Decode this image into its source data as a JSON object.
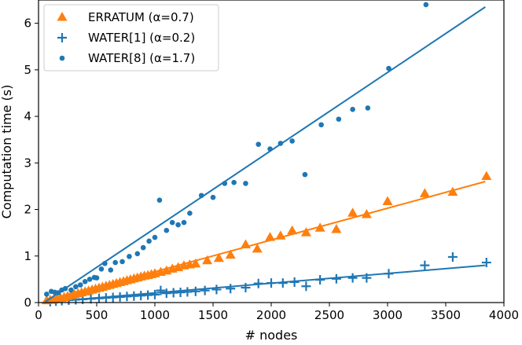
{
  "chart_data": {
    "type": "scatter",
    "title": "",
    "xlabel": "# nodes",
    "ylabel": "Computation time (s)",
    "xlim": [
      0,
      4000
    ],
    "ylim": [
      0,
      6.5
    ],
    "xticks": [
      0,
      500,
      1000,
      1500,
      2000,
      2500,
      3000,
      3500,
      4000
    ],
    "yticks": [
      0,
      1,
      2,
      3,
      4,
      5,
      6
    ],
    "grid": false,
    "legend_position": "top-left",
    "series": [
      {
        "name": "ERRATUM (α=0.7)",
        "marker": "triangle",
        "color": "#ff7f0e",
        "fit": [
          [
            60,
            0.02
          ],
          [
            3840,
            2.6
          ]
        ],
        "points": [
          [
            70,
            0.04
          ],
          [
            100,
            0.05
          ],
          [
            130,
            0.06
          ],
          [
            160,
            0.08
          ],
          [
            190,
            0.09
          ],
          [
            220,
            0.11
          ],
          [
            250,
            0.13
          ],
          [
            280,
            0.15
          ],
          [
            310,
            0.17
          ],
          [
            340,
            0.19
          ],
          [
            370,
            0.21
          ],
          [
            400,
            0.23
          ],
          [
            430,
            0.25
          ],
          [
            460,
            0.27
          ],
          [
            490,
            0.29
          ],
          [
            520,
            0.31
          ],
          [
            550,
            0.33
          ],
          [
            580,
            0.35
          ],
          [
            610,
            0.37
          ],
          [
            640,
            0.39
          ],
          [
            670,
            0.41
          ],
          [
            700,
            0.43
          ],
          [
            730,
            0.45
          ],
          [
            760,
            0.47
          ],
          [
            790,
            0.49
          ],
          [
            820,
            0.51
          ],
          [
            850,
            0.53
          ],
          [
            880,
            0.55
          ],
          [
            910,
            0.57
          ],
          [
            940,
            0.58
          ],
          [
            970,
            0.6
          ],
          [
            1000,
            0.62
          ],
          [
            1050,
            0.65
          ],
          [
            1100,
            0.68
          ],
          [
            1150,
            0.72
          ],
          [
            1200,
            0.75
          ],
          [
            1250,
            0.79
          ],
          [
            1300,
            0.81
          ],
          [
            1350,
            0.83
          ],
          [
            1450,
            0.9
          ],
          [
            1550,
            0.95
          ],
          [
            1650,
            1.02
          ],
          [
            1780,
            1.24
          ],
          [
            1880,
            1.15
          ],
          [
            1990,
            1.4
          ],
          [
            2080,
            1.43
          ],
          [
            2180,
            1.54
          ],
          [
            2300,
            1.5
          ],
          [
            2420,
            1.6
          ],
          [
            2560,
            1.57
          ],
          [
            2700,
            1.92
          ],
          [
            2820,
            1.89
          ],
          [
            3000,
            2.17
          ],
          [
            3320,
            2.34
          ],
          [
            3560,
            2.37
          ],
          [
            3850,
            2.71
          ]
        ]
      },
      {
        "name": "WATER[1] (α=0.2)",
        "marker": "plus",
        "color": "#1f77b4",
        "fit": [
          [
            60,
            0.01
          ],
          [
            3840,
            0.8
          ]
        ],
        "points": [
          [
            100,
            0.02
          ],
          [
            150,
            0.03
          ],
          [
            200,
            0.04
          ],
          [
            260,
            0.05
          ],
          [
            320,
            0.06
          ],
          [
            380,
            0.07
          ],
          [
            450,
            0.08
          ],
          [
            520,
            0.09
          ],
          [
            580,
            0.1
          ],
          [
            640,
            0.11
          ],
          [
            700,
            0.12
          ],
          [
            760,
            0.13
          ],
          [
            820,
            0.14
          ],
          [
            880,
            0.15
          ],
          [
            940,
            0.16
          ],
          [
            1000,
            0.17
          ],
          [
            1050,
            0.26
          ],
          [
            1100,
            0.2
          ],
          [
            1160,
            0.21
          ],
          [
            1220,
            0.22
          ],
          [
            1280,
            0.23
          ],
          [
            1350,
            0.24
          ],
          [
            1430,
            0.26
          ],
          [
            1530,
            0.28
          ],
          [
            1650,
            0.3
          ],
          [
            1780,
            0.32
          ],
          [
            1890,
            0.41
          ],
          [
            2000,
            0.42
          ],
          [
            2100,
            0.42
          ],
          [
            2200,
            0.44
          ],
          [
            2300,
            0.35
          ],
          [
            2420,
            0.49
          ],
          [
            2560,
            0.51
          ],
          [
            2700,
            0.53
          ],
          [
            2820,
            0.53
          ],
          [
            3010,
            0.62
          ],
          [
            3320,
            0.8
          ],
          [
            3560,
            0.98
          ],
          [
            3850,
            0.86
          ]
        ]
      },
      {
        "name": "WATER[8] (α=1.7)",
        "marker": "circle",
        "color": "#1f77b4",
        "fit": [
          [
            60,
            0.02
          ],
          [
            3840,
            6.35
          ]
        ],
        "points": [
          [
            70,
            0.18
          ],
          [
            110,
            0.24
          ],
          [
            140,
            0.22
          ],
          [
            170,
            0.21
          ],
          [
            200,
            0.27
          ],
          [
            230,
            0.3
          ],
          [
            280,
            0.27
          ],
          [
            320,
            0.34
          ],
          [
            360,
            0.38
          ],
          [
            400,
            0.45
          ],
          [
            440,
            0.5
          ],
          [
            480,
            0.54
          ],
          [
            500,
            0.53
          ],
          [
            540,
            0.72
          ],
          [
            570,
            0.84
          ],
          [
            620,
            0.7
          ],
          [
            660,
            0.86
          ],
          [
            720,
            0.88
          ],
          [
            780,
            0.99
          ],
          [
            850,
            1.05
          ],
          [
            900,
            1.18
          ],
          [
            950,
            1.32
          ],
          [
            1000,
            1.4
          ],
          [
            1040,
            2.2
          ],
          [
            1100,
            1.55
          ],
          [
            1150,
            1.72
          ],
          [
            1200,
            1.67
          ],
          [
            1250,
            1.72
          ],
          [
            1300,
            1.92
          ],
          [
            1400,
            2.3
          ],
          [
            1500,
            2.26
          ],
          [
            1600,
            2.56
          ],
          [
            1680,
            2.58
          ],
          [
            1780,
            2.56
          ],
          [
            1890,
            3.4
          ],
          [
            1990,
            3.3
          ],
          [
            2080,
            3.42
          ],
          [
            2180,
            3.47
          ],
          [
            2290,
            2.75
          ],
          [
            2430,
            3.82
          ],
          [
            2580,
            3.94
          ],
          [
            2700,
            4.15
          ],
          [
            2830,
            4.18
          ],
          [
            3010,
            5.03
          ],
          [
            3330,
            6.4
          ]
        ]
      }
    ]
  }
}
